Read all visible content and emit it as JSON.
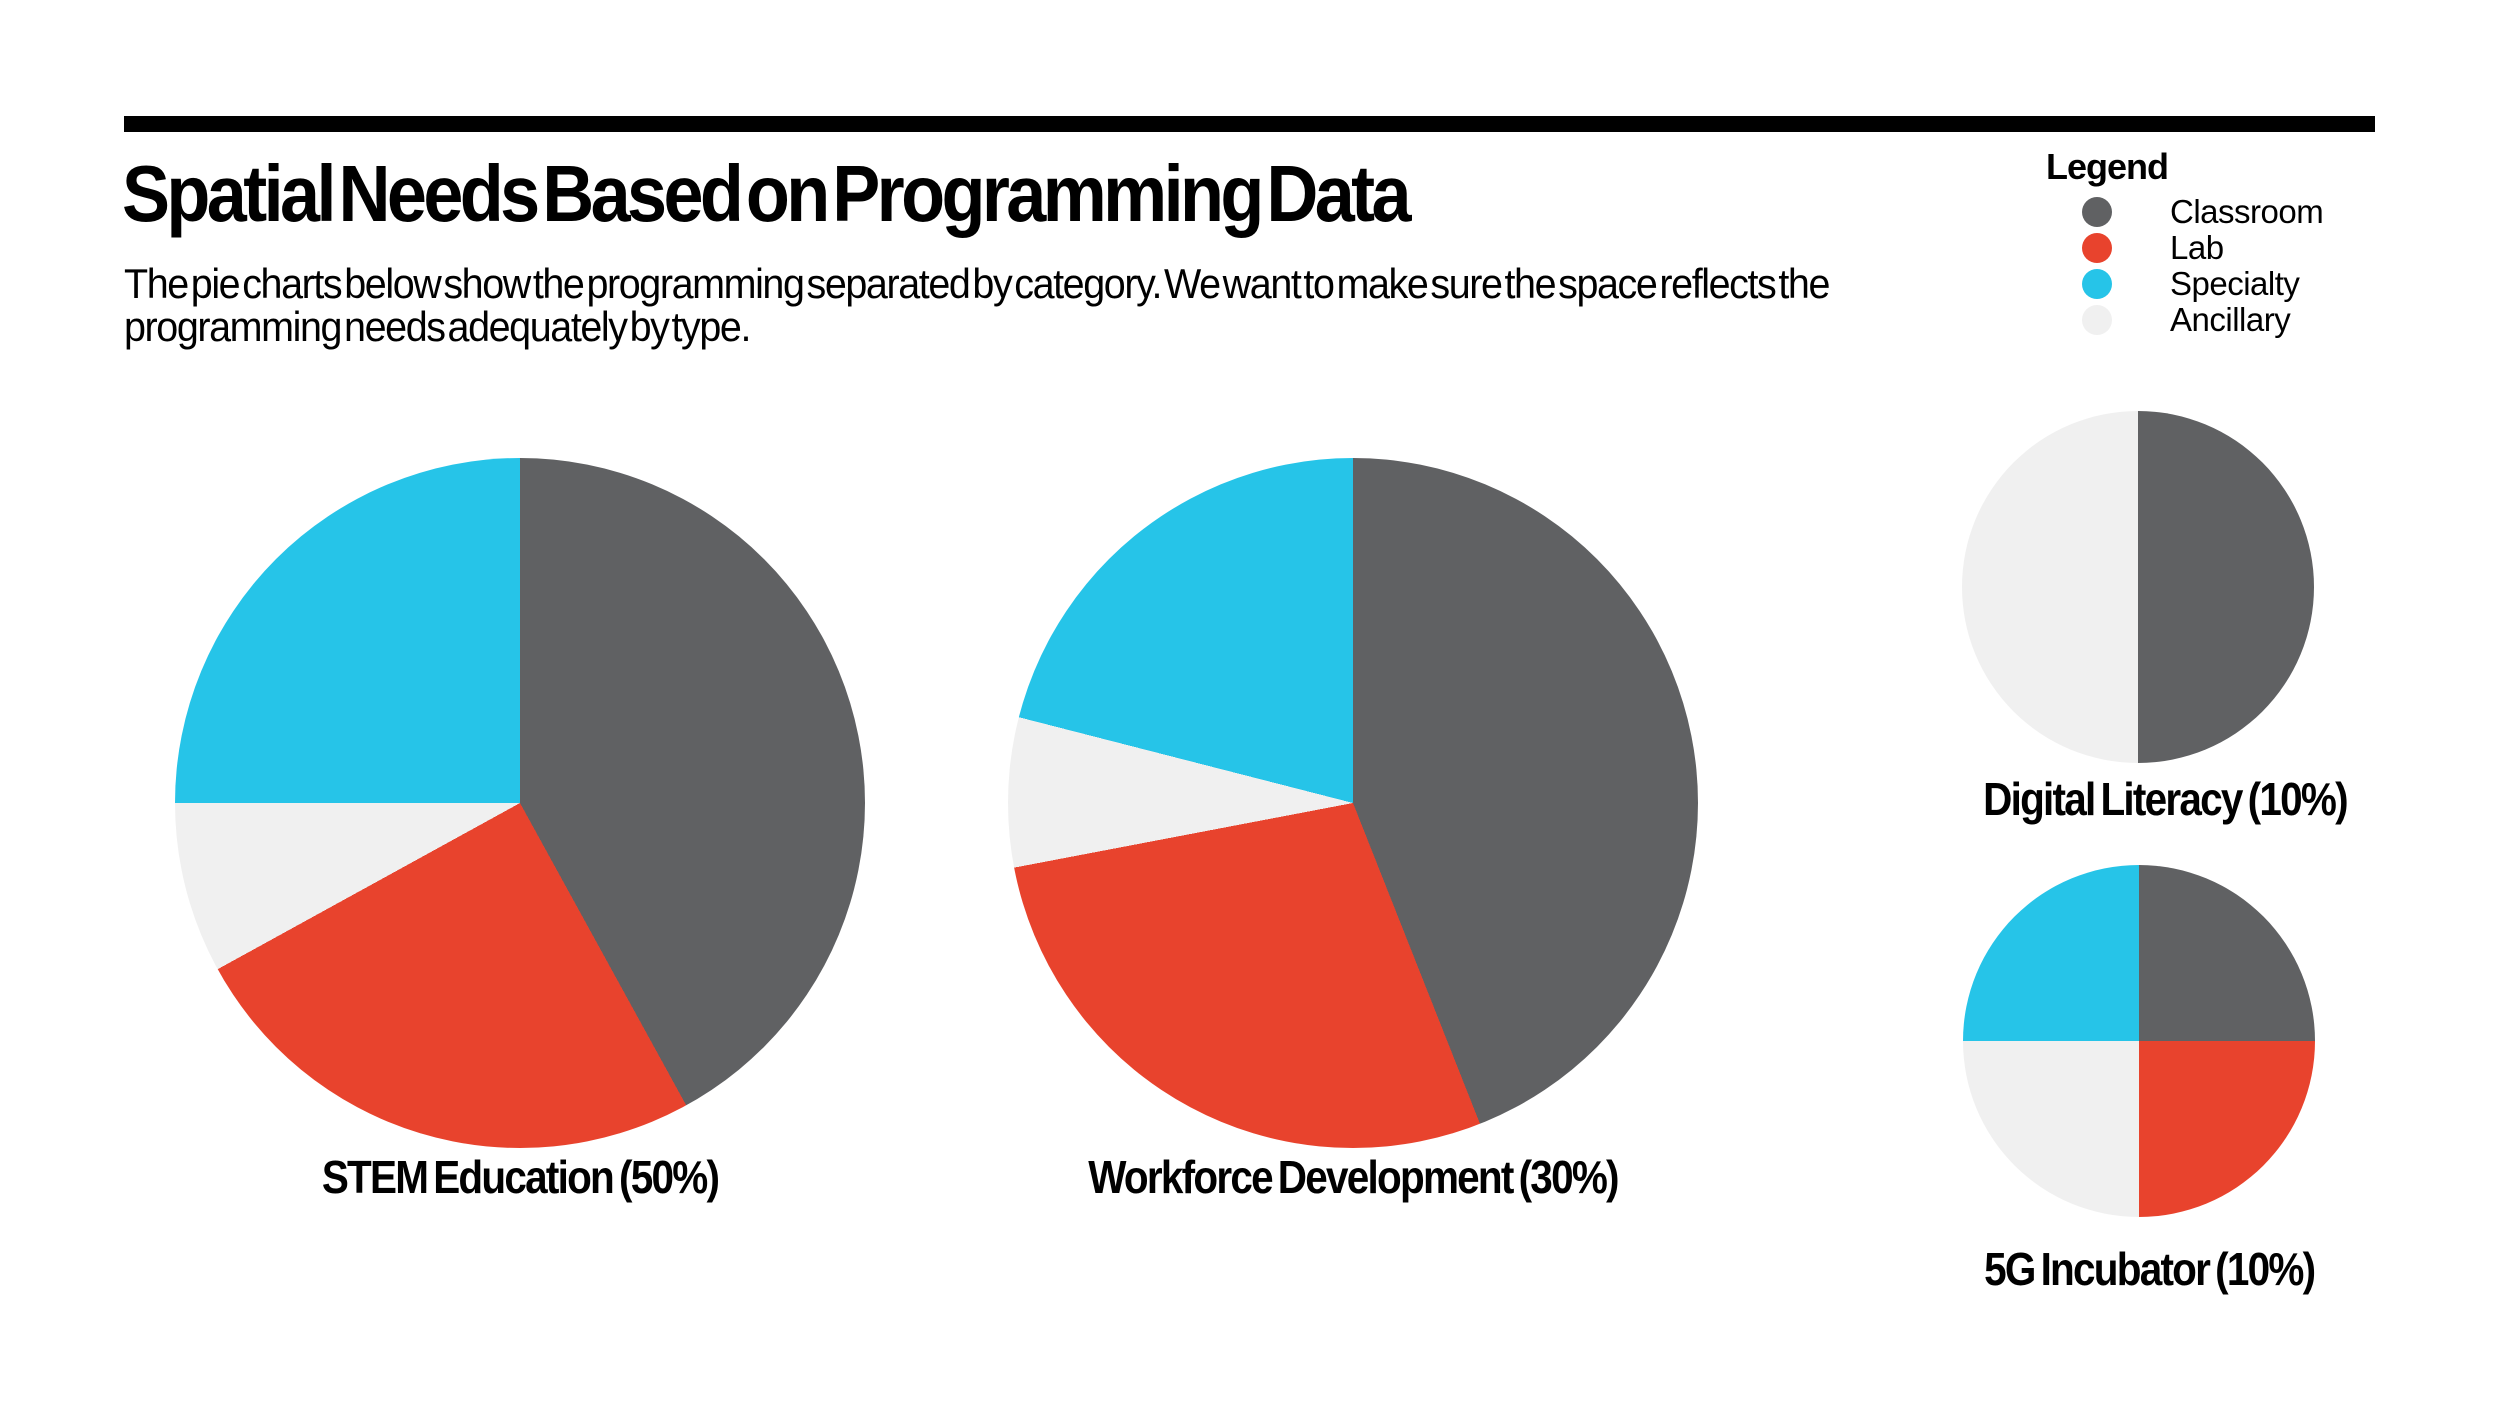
{
  "header": {
    "title": "Spatial Needs Based on Programming Data",
    "subtitle_lines": [
      "The pie charts below show the programming separated by category. We want to make sure the space reflects the",
      "programming needs adequately by type."
    ]
  },
  "legend": {
    "title": "Legend",
    "items": [
      {
        "label": "Classroom",
        "color": "#606163"
      },
      {
        "label": "Lab",
        "color": "#E8432D"
      },
      {
        "label": "Specialty",
        "color": "#26C4E8"
      },
      {
        "label": "Ancillary",
        "color": "#F0F0F0"
      }
    ]
  },
  "chart_data": [
    {
      "type": "pie",
      "title": "STEM Education (50%)",
      "share_of_total": "50%",
      "start_angle_deg": 0,
      "direction": "clockwise",
      "slices": [
        {
          "category": "Classroom",
          "pct": 42
        },
        {
          "category": "Lab",
          "pct": 25
        },
        {
          "category": "Ancillary",
          "pct": 8
        },
        {
          "category": "Specialty",
          "pct": 25
        }
      ]
    },
    {
      "type": "pie",
      "title": "Workforce Development (30%)",
      "share_of_total": "30%",
      "start_angle_deg": 0,
      "direction": "clockwise",
      "slices": [
        {
          "category": "Classroom",
          "pct": 44
        },
        {
          "category": "Lab",
          "pct": 28
        },
        {
          "category": "Ancillary",
          "pct": 7
        },
        {
          "category": "Specialty",
          "pct": 21
        }
      ]
    },
    {
      "type": "pie",
      "title": "Digital Literacy (10%)",
      "share_of_total": "10%",
      "start_angle_deg": 0,
      "direction": "clockwise",
      "slices": [
        {
          "category": "Classroom",
          "pct": 50
        },
        {
          "category": "Ancillary",
          "pct": 50
        }
      ]
    },
    {
      "type": "pie",
      "title": "5G Incubator (10%)",
      "share_of_total": "10%",
      "start_angle_deg": 0,
      "direction": "clockwise",
      "slices": [
        {
          "category": "Classroom",
          "pct": 25
        },
        {
          "category": "Lab",
          "pct": 25
        },
        {
          "category": "Ancillary",
          "pct": 25
        },
        {
          "category": "Specialty",
          "pct": 25
        }
      ]
    }
  ]
}
